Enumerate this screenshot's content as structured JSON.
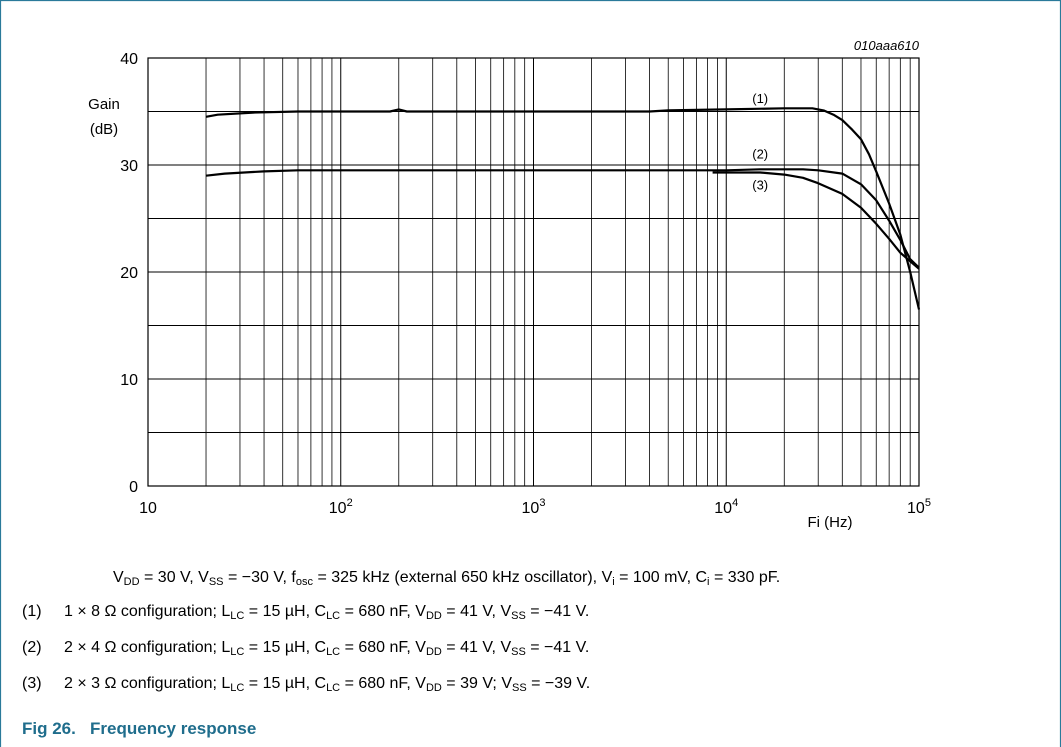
{
  "figure": {
    "id_label": "010aaa610",
    "number": "Fig 26.",
    "title": "Frequency response",
    "caption": {
      "line": "V_DD = 30 V, V_SS = −30 V, f_osc = 325 kHz (external 650 kHz oscillator), V_i = 100 mV, C_i = 330 pF.",
      "vdd": "V",
      "vdd_sub": "DD",
      "vdd_val": " = 30 V, ",
      "vss": "V",
      "vss_sub": "SS",
      "vss_val": " = −30 V, ",
      "fosc": "f",
      "fosc_sub": "osc",
      "fosc_val": " = 325 kHz (external 650 kHz oscillator), ",
      "vi": "V",
      "vi_sub": "i",
      "vi_val": " = 100 mV, ",
      "ci": "C",
      "ci_sub": "i",
      "ci_val": " = 330 pF."
    },
    "notes": [
      {
        "num": "(1)",
        "cfg": "1 × 8 Ω configuration; ",
        "l": "L",
        "l_sub": "LC",
        "l_val": " = 15 µH, ",
        "c": "C",
        "c_sub": "LC",
        "c_val": " = 680 nF, ",
        "vdd": "V",
        "vdd_sub": "DD",
        "vdd_val": " = 41 V, ",
        "vss": "V",
        "vss_sub": "SS",
        "vss_val": " = −41 V."
      },
      {
        "num": "(2)",
        "cfg": "2 × 4 Ω configuration; ",
        "l": "L",
        "l_sub": "LC",
        "l_val": " = 15 µH, ",
        "c": "C",
        "c_sub": "LC",
        "c_val": " = 680 nF, ",
        "vdd": "V",
        "vdd_sub": "DD",
        "vdd_val": " = 41 V, ",
        "vss": "V",
        "vss_sub": "SS",
        "vss_val": " = −41 V."
      },
      {
        "num": "(3)",
        "cfg": "2 × 3 Ω configuration; ",
        "l": "L",
        "l_sub": "LC",
        "l_val": " = 15 µH, ",
        "c": "C",
        "c_sub": "LC",
        "c_val": " = 680 nF, ",
        "vdd": "V",
        "vdd_sub": "DD",
        "vdd_val": " = 39 V; ",
        "vss": "V",
        "vss_sub": "SS",
        "vss_val": " = −39 V."
      }
    ]
  },
  "colors": {
    "frame": "#2a7a9a",
    "title": "#1f6d8c",
    "grid": "#000000",
    "curve": "#000000"
  },
  "chart_data": {
    "type": "line",
    "x_scale": "log",
    "xlim": [
      10,
      100000
    ],
    "ylim": [
      0,
      40
    ],
    "xlabel": "Fi (Hz)",
    "ylabel_line1": "Gain",
    "ylabel_line2": "(dB)",
    "y_ticks": [
      0,
      10,
      20,
      30,
      40
    ],
    "x_ticks": [
      {
        "value": 10,
        "base": "10",
        "exp": ""
      },
      {
        "value": 100,
        "base": "10",
        "exp": "2"
      },
      {
        "value": 1000,
        "base": "10",
        "exp": "3"
      },
      {
        "value": 10000,
        "base": "10",
        "exp": "4"
      },
      {
        "value": 100000,
        "base": "10",
        "exp": "5"
      }
    ],
    "grid": true,
    "series": [
      {
        "name": "(1)",
        "label_at": [
          15000,
          35.8
        ],
        "x": [
          20,
          23,
          35,
          60,
          180,
          200,
          220,
          400,
          1000,
          4000,
          5000,
          10000,
          20000,
          28000,
          32000,
          36000,
          40000,
          45000,
          50000,
          55000,
          60000,
          70000,
          80000,
          90000,
          100000
        ],
        "y": [
          34.5,
          34.7,
          34.9,
          35.0,
          35.0,
          35.2,
          35.0,
          35.0,
          35.0,
          35.0,
          35.1,
          35.2,
          35.3,
          35.3,
          35.1,
          34.7,
          34.2,
          33.3,
          32.4,
          31.0,
          29.4,
          26.4,
          23.5,
          20.0,
          16.5
        ]
      },
      {
        "name": "(2)",
        "label_at": [
          15000,
          30.6
        ],
        "x": [
          20,
          25,
          40,
          60,
          1000,
          10000,
          15000,
          20000,
          25000,
          30000,
          40000,
          50000,
          60000,
          70000,
          80000,
          90000,
          100000
        ],
        "y": [
          29.0,
          29.2,
          29.4,
          29.5,
          29.5,
          29.5,
          29.6,
          29.6,
          29.6,
          29.5,
          29.2,
          28.2,
          26.7,
          24.8,
          23.0,
          21.2,
          20.4
        ]
      },
      {
        "name": "(3)",
        "label_at": [
          15000,
          27.7
        ],
        "x": [
          8500,
          10000,
          15000,
          20000,
          25000,
          30000,
          40000,
          50000,
          60000,
          70000,
          80000,
          90000,
          100000
        ],
        "y": [
          29.3,
          29.3,
          29.3,
          29.1,
          28.8,
          28.3,
          27.3,
          26.0,
          24.5,
          23.1,
          21.8,
          21.0,
          20.3
        ]
      }
    ]
  }
}
